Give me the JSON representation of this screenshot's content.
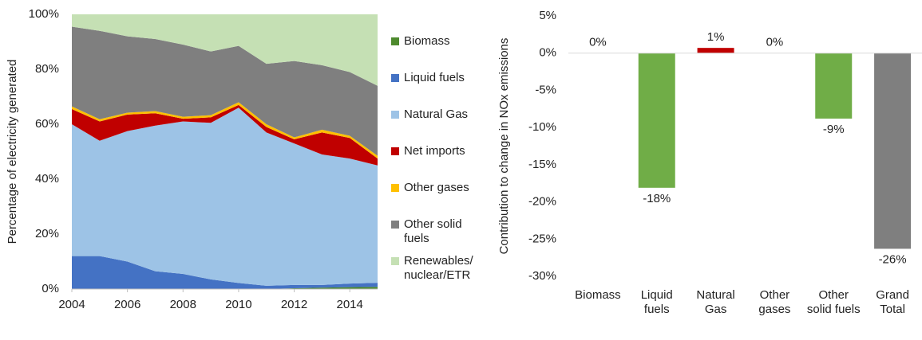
{
  "chart_data": [
    {
      "type": "area",
      "ylabel": "Percentage of electricity generated",
      "x": [
        2004,
        2005,
        2006,
        2007,
        2008,
        2009,
        2010,
        2011,
        2012,
        2013,
        2014,
        2015
      ],
      "xlim": [
        2004,
        2015
      ],
      "xticks": [
        2004,
        2006,
        2008,
        2010,
        2012,
        2014
      ],
      "ylim": [
        0,
        100
      ],
      "yticks": [
        {
          "value": 0,
          "label": "0%"
        },
        {
          "value": 20,
          "label": "20%"
        },
        {
          "value": 40,
          "label": "40%"
        },
        {
          "value": 60,
          "label": "60%"
        },
        {
          "value": 80,
          "label": "80%"
        },
        {
          "value": 100,
          "label": "100%"
        }
      ],
      "legend": "right",
      "grid": false,
      "series": [
        {
          "name": "Biomass",
          "color": "#4e8a2e",
          "values": [
            0,
            0,
            0,
            0,
            0,
            0,
            0,
            0,
            0.3,
            0.5,
            0.7,
            0.8
          ]
        },
        {
          "name": "Liquid fuels",
          "color": "#4472c4",
          "values": [
            12,
            12,
            10,
            6.5,
            5.5,
            3.5,
            2.2,
            1.2,
            1.2,
            1,
            1.3,
            1.5
          ]
        },
        {
          "name": "Natural Gas",
          "color": "#9dc3e6",
          "values": [
            48,
            42,
            47.5,
            53,
            55.5,
            57,
            63.8,
            55.8,
            51.5,
            47.5,
            45.5,
            42.7
          ]
        },
        {
          "name": "Net imports",
          "color": "#c00000",
          "values": [
            5.5,
            7,
            6,
            4.5,
            1,
            2,
            1,
            2,
            1.5,
            8,
            7.5,
            2.5
          ]
        },
        {
          "name": "Other gases",
          "color": "#ffc000",
          "values": [
            1,
            0.8,
            0.7,
            0.8,
            0.7,
            0.8,
            1,
            1,
            0.7,
            1,
            0.8,
            1
          ]
        },
        {
          "name": "Other solid fuels",
          "color": "#7f7f7f",
          "values": [
            29,
            32.2,
            27.8,
            26.2,
            26.3,
            23.2,
            20.5,
            22,
            27.8,
            23.5,
            23.2,
            25.5
          ]
        },
        {
          "name": "Renewables/ nuclear/ETR",
          "color": "#c5e0b4",
          "values": [
            4.5,
            6,
            8,
            9,
            11,
            13.5,
            11.5,
            18,
            17,
            18.5,
            21,
            26
          ]
        }
      ]
    },
    {
      "type": "bar",
      "ylabel": "Contribution to change in NOx emissions",
      "categories": [
        "Biomass",
        "Liquid fuels",
        "Natural Gas",
        "Other gases",
        "Other solid fuels",
        "Grand Total"
      ],
      "values": [
        0,
        -18.1,
        0.7,
        0,
        -8.8,
        -26.3
      ],
      "value_labels": [
        "0%",
        "-18%",
        "1%",
        "0%",
        "-9%",
        "-26%"
      ],
      "colors": [
        "#70ad47",
        "#70ad47",
        "#c00000",
        "#70ad47",
        "#70ad47",
        "#7f7f7f"
      ],
      "ylim": [
        -30,
        5
      ],
      "yticks": [
        {
          "value": 5,
          "label": "5%"
        },
        {
          "value": 0,
          "label": "0%"
        },
        {
          "value": -5,
          "label": "-5%"
        },
        {
          "value": -10,
          "label": "-10%"
        },
        {
          "value": -15,
          "label": "-15%"
        },
        {
          "value": -20,
          "label": "-20%"
        },
        {
          "value": -25,
          "label": "-25%"
        },
        {
          "value": -30,
          "label": "-30%"
        }
      ],
      "grid": false
    }
  ]
}
